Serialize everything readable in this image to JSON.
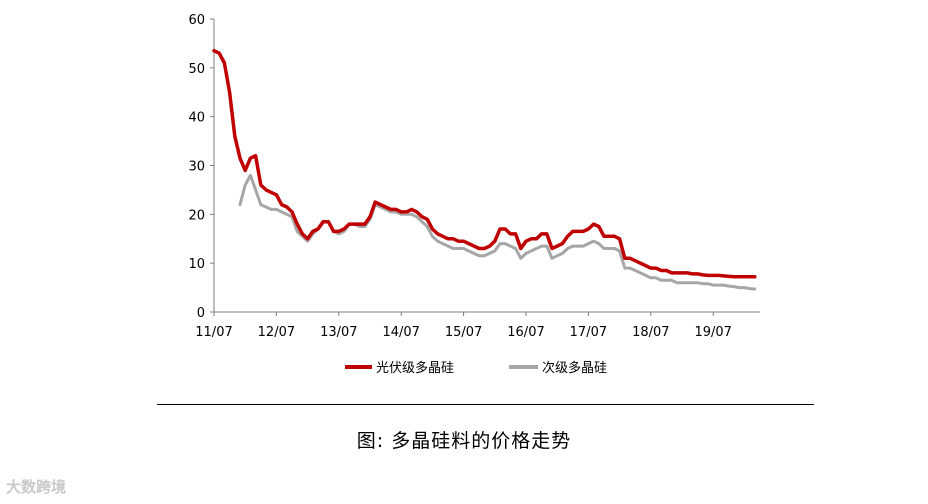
{
  "chart_data": {
    "type": "line",
    "title": "",
    "xlabel": "",
    "ylabel": "",
    "ylim": [
      0,
      60
    ],
    "yticks": [
      0,
      10,
      20,
      30,
      40,
      50,
      60
    ],
    "xlim": [
      "2011-07",
      "2020-04"
    ],
    "xticks": [
      "11/07",
      "12/07",
      "13/07",
      "14/07",
      "15/07",
      "16/07",
      "17/07",
      "18/07",
      "19/07"
    ],
    "grid": false,
    "legend_position": "bottom",
    "series": [
      {
        "name": "光伏级多晶硅",
        "color": "#c00000",
        "points": [
          [
            "2011-07",
            53.5
          ],
          [
            "2011-08",
            53.0
          ],
          [
            "2011-09",
            51.0
          ],
          [
            "2011-10",
            45.0
          ],
          [
            "2011-11",
            36.0
          ],
          [
            "2011-12",
            31.5
          ],
          [
            "2012-01",
            29.0
          ],
          [
            "2012-02",
            31.5
          ],
          [
            "2012-03",
            32.0
          ],
          [
            "2012-04",
            26.0
          ],
          [
            "2012-05",
            25.0
          ],
          [
            "2012-06",
            24.5
          ],
          [
            "2012-07",
            24.0
          ],
          [
            "2012-08",
            22.0
          ],
          [
            "2012-09",
            21.5
          ],
          [
            "2012-10",
            20.5
          ],
          [
            "2012-11",
            18.0
          ],
          [
            "2012-12",
            16.0
          ],
          [
            "2013-01",
            15.0
          ],
          [
            "2013-02",
            16.5
          ],
          [
            "2013-03",
            17.0
          ],
          [
            "2013-04",
            18.5
          ],
          [
            "2013-05",
            18.5
          ],
          [
            "2013-06",
            16.5
          ],
          [
            "2013-07",
            16.5
          ],
          [
            "2013-08",
            17.0
          ],
          [
            "2013-09",
            18.0
          ],
          [
            "2013-10",
            18.0
          ],
          [
            "2013-11",
            18.0
          ],
          [
            "2013-12",
            18.0
          ],
          [
            "2014-01",
            19.5
          ],
          [
            "2014-02",
            22.5
          ],
          [
            "2014-03",
            22.0
          ],
          [
            "2014-04",
            21.5
          ],
          [
            "2014-05",
            21.0
          ],
          [
            "2014-06",
            21.0
          ],
          [
            "2014-07",
            20.5
          ],
          [
            "2014-08",
            20.5
          ],
          [
            "2014-09",
            21.0
          ],
          [
            "2014-10",
            20.5
          ],
          [
            "2014-11",
            19.5
          ],
          [
            "2014-12",
            19.0
          ],
          [
            "2015-01",
            17.0
          ],
          [
            "2015-02",
            16.0
          ],
          [
            "2015-03",
            15.5
          ],
          [
            "2015-04",
            15.0
          ],
          [
            "2015-05",
            15.0
          ],
          [
            "2015-06",
            14.5
          ],
          [
            "2015-07",
            14.5
          ],
          [
            "2015-08",
            14.0
          ],
          [
            "2015-09",
            13.5
          ],
          [
            "2015-10",
            13.0
          ],
          [
            "2015-11",
            13.0
          ],
          [
            "2015-12",
            13.5
          ],
          [
            "2016-01",
            14.5
          ],
          [
            "2016-02",
            17.0
          ],
          [
            "2016-03",
            17.0
          ],
          [
            "2016-04",
            16.0
          ],
          [
            "2016-05",
            16.0
          ],
          [
            "2016-06",
            13.0
          ],
          [
            "2016-07",
            14.5
          ],
          [
            "2016-08",
            15.0
          ],
          [
            "2016-09",
            15.0
          ],
          [
            "2016-10",
            16.0
          ],
          [
            "2016-11",
            16.0
          ],
          [
            "2016-12",
            13.0
          ],
          [
            "2017-01",
            13.5
          ],
          [
            "2017-02",
            14.0
          ],
          [
            "2017-03",
            15.5
          ],
          [
            "2017-04",
            16.5
          ],
          [
            "2017-05",
            16.5
          ],
          [
            "2017-06",
            16.5
          ],
          [
            "2017-07",
            17.0
          ],
          [
            "2017-08",
            18.0
          ],
          [
            "2017-09",
            17.5
          ],
          [
            "2017-10",
            15.5
          ],
          [
            "2017-11",
            15.5
          ],
          [
            "2017-12",
            15.5
          ],
          [
            "2018-01",
            15.0
          ],
          [
            "2018-02",
            11.0
          ],
          [
            "2018-03",
            11.0
          ],
          [
            "2018-04",
            10.5
          ],
          [
            "2018-05",
            10.0
          ],
          [
            "2018-06",
            9.5
          ],
          [
            "2018-07",
            9.0
          ],
          [
            "2018-08",
            9.0
          ],
          [
            "2018-09",
            8.5
          ],
          [
            "2018-10",
            8.5
          ],
          [
            "2018-11",
            8.0
          ],
          [
            "2018-12",
            8.0
          ],
          [
            "2019-01",
            8.0
          ],
          [
            "2019-02",
            8.0
          ],
          [
            "2019-03",
            7.8
          ],
          [
            "2019-04",
            7.8
          ],
          [
            "2019-05",
            7.6
          ],
          [
            "2019-06",
            7.5
          ],
          [
            "2019-07",
            7.5
          ],
          [
            "2019-08",
            7.5
          ],
          [
            "2019-09",
            7.4
          ],
          [
            "2019-10",
            7.3
          ],
          [
            "2019-11",
            7.2
          ],
          [
            "2019-12",
            7.2
          ],
          [
            "2020-01",
            7.2
          ],
          [
            "2020-02",
            7.2
          ],
          [
            "2020-03",
            7.2
          ]
        ]
      },
      {
        "name": "次级多晶硅",
        "color": "#a6a6a6",
        "points": [
          [
            "2011-12",
            22.0
          ],
          [
            "2012-01",
            26.0
          ],
          [
            "2012-02",
            28.0
          ],
          [
            "2012-03",
            25.0
          ],
          [
            "2012-04",
            22.0
          ],
          [
            "2012-05",
            21.5
          ],
          [
            "2012-06",
            21.0
          ],
          [
            "2012-07",
            21.0
          ],
          [
            "2012-08",
            20.5
          ],
          [
            "2012-09",
            20.0
          ],
          [
            "2012-10",
            19.5
          ],
          [
            "2012-11",
            16.5
          ],
          [
            "2012-12",
            15.5
          ],
          [
            "2013-01",
            14.5
          ],
          [
            "2013-02",
            16.0
          ],
          [
            "2013-03",
            17.0
          ],
          [
            "2013-04",
            18.5
          ],
          [
            "2013-05",
            18.5
          ],
          [
            "2013-06",
            16.5
          ],
          [
            "2013-07",
            16.0
          ],
          [
            "2013-08",
            16.5
          ],
          [
            "2013-09",
            18.0
          ],
          [
            "2013-10",
            18.0
          ],
          [
            "2013-11",
            17.5
          ],
          [
            "2013-12",
            17.5
          ],
          [
            "2014-01",
            19.0
          ],
          [
            "2014-02",
            22.0
          ],
          [
            "2014-03",
            21.5
          ],
          [
            "2014-04",
            21.0
          ],
          [
            "2014-05",
            20.5
          ],
          [
            "2014-06",
            20.5
          ],
          [
            "2014-07",
            20.0
          ],
          [
            "2014-08",
            20.0
          ],
          [
            "2014-09",
            20.0
          ],
          [
            "2014-10",
            19.5
          ],
          [
            "2014-11",
            18.5
          ],
          [
            "2014-12",
            17.5
          ],
          [
            "2015-01",
            15.5
          ],
          [
            "2015-02",
            14.5
          ],
          [
            "2015-03",
            14.0
          ],
          [
            "2015-04",
            13.5
          ],
          [
            "2015-05",
            13.0
          ],
          [
            "2015-06",
            13.0
          ],
          [
            "2015-07",
            13.0
          ],
          [
            "2015-08",
            12.5
          ],
          [
            "2015-09",
            12.0
          ],
          [
            "2015-10",
            11.5
          ],
          [
            "2015-11",
            11.5
          ],
          [
            "2015-12",
            12.0
          ],
          [
            "2016-01",
            12.5
          ],
          [
            "2016-02",
            14.0
          ],
          [
            "2016-03",
            14.0
          ],
          [
            "2016-04",
            13.5
          ],
          [
            "2016-05",
            13.0
          ],
          [
            "2016-06",
            11.0
          ],
          [
            "2016-07",
            12.0
          ],
          [
            "2016-08",
            12.5
          ],
          [
            "2016-09",
            13.0
          ],
          [
            "2016-10",
            13.5
          ],
          [
            "2016-11",
            13.5
          ],
          [
            "2016-12",
            11.0
          ],
          [
            "2017-01",
            11.5
          ],
          [
            "2017-02",
            12.0
          ],
          [
            "2017-03",
            13.0
          ],
          [
            "2017-04",
            13.5
          ],
          [
            "2017-05",
            13.5
          ],
          [
            "2017-06",
            13.5
          ],
          [
            "2017-07",
            14.0
          ],
          [
            "2017-08",
            14.5
          ],
          [
            "2017-09",
            14.0
          ],
          [
            "2017-10",
            13.0
          ],
          [
            "2017-11",
            13.0
          ],
          [
            "2017-12",
            13.0
          ],
          [
            "2018-01",
            12.5
          ],
          [
            "2018-02",
            9.0
          ],
          [
            "2018-03",
            9.0
          ],
          [
            "2018-04",
            8.5
          ],
          [
            "2018-05",
            8.0
          ],
          [
            "2018-06",
            7.5
          ],
          [
            "2018-07",
            7.0
          ],
          [
            "2018-08",
            7.0
          ],
          [
            "2018-09",
            6.5
          ],
          [
            "2018-10",
            6.5
          ],
          [
            "2018-11",
            6.5
          ],
          [
            "2018-12",
            6.0
          ],
          [
            "2019-01",
            6.0
          ],
          [
            "2019-02",
            6.0
          ],
          [
            "2019-03",
            6.0
          ],
          [
            "2019-04",
            6.0
          ],
          [
            "2019-05",
            5.8
          ],
          [
            "2019-06",
            5.8
          ],
          [
            "2019-07",
            5.5
          ],
          [
            "2019-08",
            5.5
          ],
          [
            "2019-09",
            5.5
          ],
          [
            "2019-10",
            5.3
          ],
          [
            "2019-11",
            5.2
          ],
          [
            "2019-12",
            5.0
          ],
          [
            "2020-01",
            5.0
          ],
          [
            "2020-02",
            4.8
          ],
          [
            "2020-03",
            4.7
          ]
        ]
      }
    ]
  },
  "caption": "图:  多晶硅料的价格走势",
  "watermark": "大数跨境"
}
